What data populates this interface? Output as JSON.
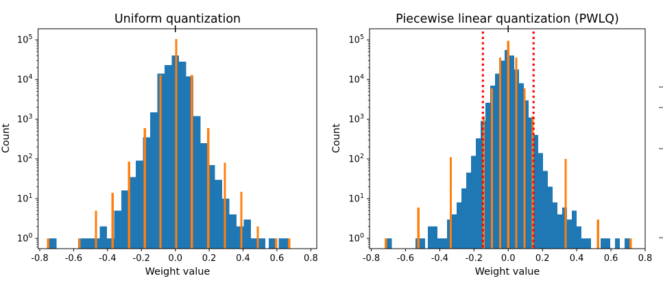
{
  "figure": {
    "background": "#ffffff"
  },
  "colors": {
    "histogram": "#1f77b4",
    "quant_level": "#ff7f0e",
    "breakpoint": "#ff0000",
    "axis": "#000000",
    "cropped_tick": "#555555"
  },
  "chart_data": [
    {
      "type": "bar",
      "title": "Uniform quantization",
      "xlabel": "Weight value",
      "ylabel": "Count",
      "y_scale": "log",
      "xlim": [
        -0.81,
        0.835
      ],
      "ylim": [
        0.55,
        190000
      ],
      "x_ticks": [
        -0.8,
        -0.6,
        -0.4,
        -0.2,
        0.0,
        0.2,
        0.4,
        0.6,
        0.8
      ],
      "x_tick_labels": [
        "-0.8",
        "-0.6",
        "-0.4",
        "-0.2",
        "0.0",
        "0.2",
        "0.4",
        "0.6",
        "0.8"
      ],
      "y_tick_exponents": [
        0,
        1,
        2,
        3,
        4,
        5
      ],
      "bin_width": 0.0425,
      "bins": [
        [
          -0.7225,
          1
        ],
        [
          -0.5525,
          1
        ],
        [
          -0.51,
          1
        ],
        [
          -0.4675,
          1
        ],
        [
          -0.425,
          2
        ],
        [
          -0.3825,
          1
        ],
        [
          -0.34,
          5
        ],
        [
          -0.2975,
          16
        ],
        [
          -0.255,
          35
        ],
        [
          -0.2125,
          90
        ],
        [
          -0.17,
          350
        ],
        [
          -0.1275,
          1500
        ],
        [
          -0.085,
          14000
        ],
        [
          -0.0425,
          23000
        ],
        [
          0.0,
          40000
        ],
        [
          0.0425,
          28000
        ],
        [
          0.085,
          12000
        ],
        [
          0.1275,
          1200
        ],
        [
          0.17,
          250
        ],
        [
          0.2125,
          70
        ],
        [
          0.255,
          30
        ],
        [
          0.2975,
          10
        ],
        [
          0.34,
          4
        ],
        [
          0.3825,
          2
        ],
        [
          0.425,
          3
        ],
        [
          0.4675,
          1
        ],
        [
          0.51,
          1
        ],
        [
          0.5725,
          1
        ],
        [
          0.6325,
          1
        ],
        [
          0.6575,
          1
        ]
      ],
      "quant_levels": [
        [
          -0.75,
          1
        ],
        [
          -0.565,
          1
        ],
        [
          -0.4675,
          5
        ],
        [
          -0.37,
          14
        ],
        [
          -0.2725,
          85
        ],
        [
          -0.18,
          600
        ],
        [
          -0.0875,
          13000
        ],
        [
          0.005,
          105000
        ],
        [
          0.0975,
          13000
        ],
        [
          0.195,
          600
        ],
        [
          0.2925,
          80
        ],
        [
          0.39,
          15
        ],
        [
          0.4875,
          2
        ],
        [
          0.595,
          1
        ],
        [
          0.6725,
          1
        ]
      ],
      "breakpoints": []
    },
    {
      "type": "bar",
      "title": "Piecewise linear quantization (PWLQ)",
      "xlabel": "Weight value",
      "ylabel": "Count",
      "y_scale": "log",
      "xlim": [
        -0.81,
        0.8
      ],
      "ylim": [
        0.55,
        190000
      ],
      "x_ticks": [
        -0.8,
        -0.6,
        -0.4,
        -0.2,
        0.0,
        0.2,
        0.4,
        0.6,
        0.8
      ],
      "x_tick_labels": [
        "-0.8",
        "-0.6",
        "-0.4",
        "-0.2",
        "0.0",
        "0.2",
        "0.4",
        "0.6",
        "0.8"
      ],
      "y_tick_exponents": [
        0,
        1,
        2,
        3,
        4,
        5
      ],
      "bin_width": 0.028,
      "bins": [
        [
          -0.693,
          1
        ],
        [
          -0.527,
          1
        ],
        [
          -0.499,
          1
        ],
        [
          -0.455,
          2
        ],
        [
          -0.427,
          2
        ],
        [
          -0.399,
          1
        ],
        [
          -0.371,
          1
        ],
        [
          -0.343,
          3
        ],
        [
          -0.315,
          4
        ],
        [
          -0.287,
          8
        ],
        [
          -0.259,
          18
        ],
        [
          -0.231,
          45
        ],
        [
          -0.203,
          120
        ],
        [
          -0.175,
          330
        ],
        [
          -0.147,
          900
        ],
        [
          -0.119,
          2600
        ],
        [
          -0.091,
          7000
        ],
        [
          -0.063,
          14000
        ],
        [
          -0.035,
          30000
        ],
        [
          -0.007,
          55000
        ],
        [
          0.021,
          40000
        ],
        [
          0.049,
          18000
        ],
        [
          0.077,
          8000
        ],
        [
          0.105,
          3000
        ],
        [
          0.133,
          1100
        ],
        [
          0.161,
          400
        ],
        [
          0.189,
          140
        ],
        [
          0.217,
          50
        ],
        [
          0.245,
          20
        ],
        [
          0.273,
          8
        ],
        [
          0.301,
          4
        ],
        [
          0.329,
          6
        ],
        [
          0.357,
          3
        ],
        [
          0.385,
          5
        ],
        [
          0.413,
          2
        ],
        [
          0.441,
          1
        ],
        [
          0.469,
          1
        ],
        [
          0.553,
          1
        ],
        [
          0.581,
          1
        ],
        [
          0.637,
          1
        ],
        [
          0.693,
          1
        ]
      ],
      "quant_levels": [
        [
          -0.715,
          1
        ],
        [
          -0.525,
          6
        ],
        [
          -0.335,
          110
        ],
        [
          -0.143,
          1200
        ],
        [
          -0.0955,
          6000
        ],
        [
          -0.0475,
          36000
        ],
        [
          0.0,
          95000
        ],
        [
          0.0475,
          36000
        ],
        [
          0.0955,
          6000
        ],
        [
          0.143,
          1200
        ],
        [
          0.335,
          100
        ],
        [
          0.525,
          3
        ],
        [
          0.715,
          1
        ]
      ],
      "breakpoints": [
        -0.148,
        0.148
      ]
    }
  ],
  "margin_artifacts": {
    "cropped_axis_ticks_y": [
      127,
      157,
      217,
      347
    ]
  }
}
